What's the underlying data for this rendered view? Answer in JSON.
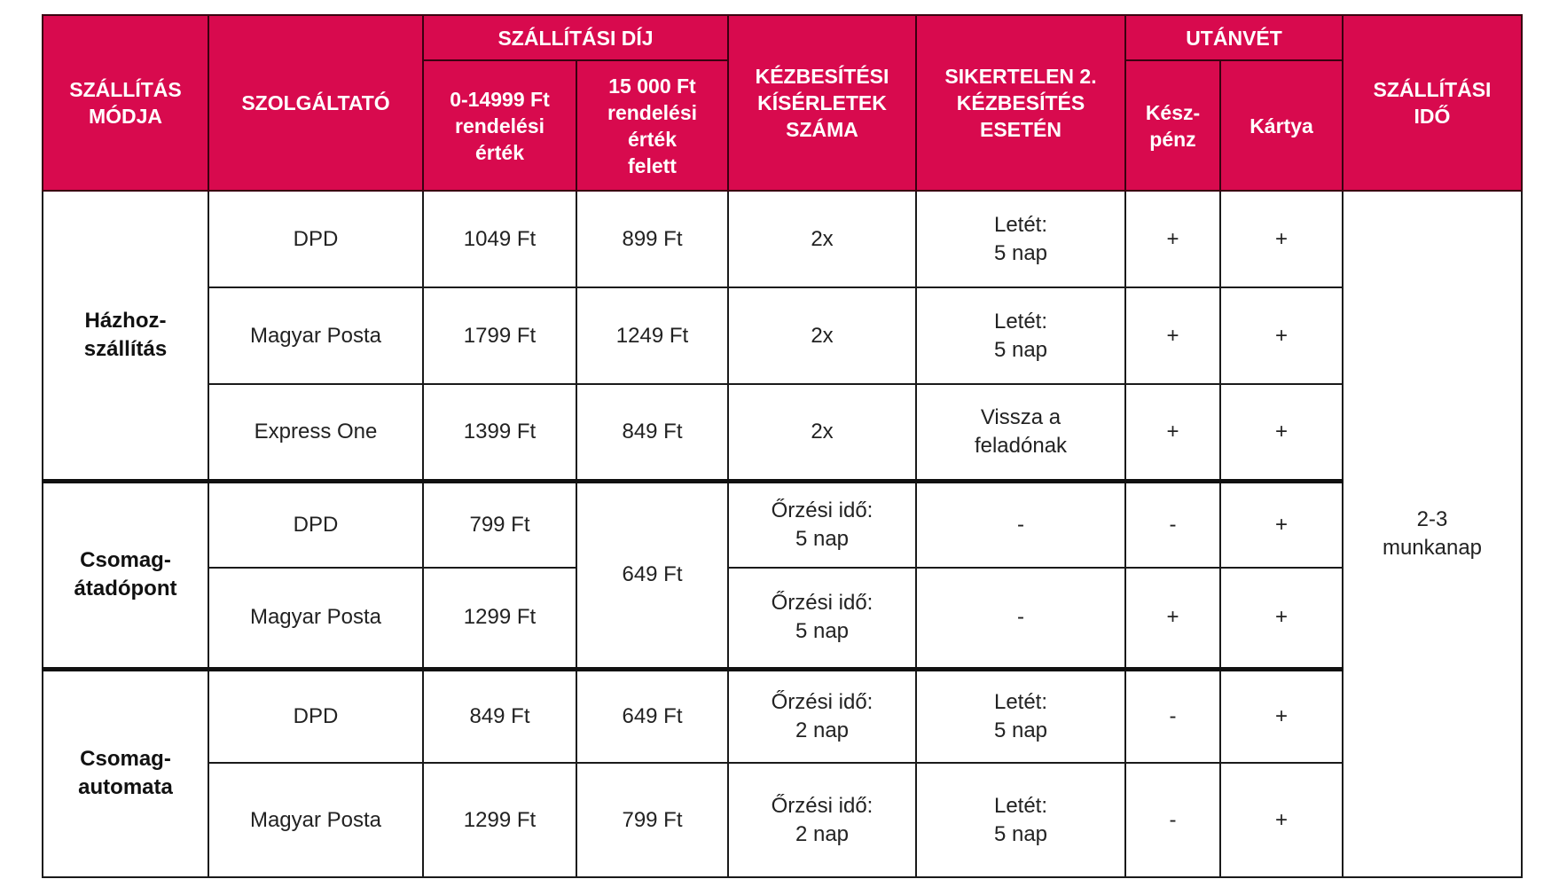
{
  "colors": {
    "header_bg": "#d80a4e",
    "header_text": "#ffffff"
  },
  "headers": {
    "mode": "SZÁLLÍTÁS\nMÓDJA",
    "provider": "SZOLGÁLTATÓ",
    "fee": "SZÁLLÍTÁSI DÍJ",
    "fee_low": "0-14999 Ft\nrendelési\nérték",
    "fee_high": "15 000 Ft\nrendelési\nérték\nfelett",
    "attempts": "KÉZBESÍTÉSI\nKÍSÉRLETEK\nSZÁMA",
    "failed": "SIKERTELEN 2.\nKÉZBESÍTÉS\nESETÉN",
    "cod": "UTÁNVÉT",
    "cash": "Kész-\npénz",
    "card": "Kártya",
    "time": "SZÁLLÍTÁSI\nIDŐ"
  },
  "groups": [
    {
      "mode": "Házhoz-\nszállítás",
      "rows": [
        {
          "provider": "DPD",
          "fee_low": "1049 Ft",
          "fee_high": "899 Ft",
          "attempts": "2x",
          "failed": "Letét:\n5 nap",
          "cash": "+",
          "card": "+"
        },
        {
          "provider": "Magyar Posta",
          "fee_low": "1799 Ft",
          "fee_high": "1249 Ft",
          "attempts": "2x",
          "failed": "Letét:\n5 nap",
          "cash": "+",
          "card": "+"
        },
        {
          "provider": "Express One",
          "fee_low": "1399 Ft",
          "fee_high": "849 Ft",
          "attempts": "2x",
          "failed": "Vissza a\nfeladónak",
          "cash": "+",
          "card": "+"
        }
      ]
    },
    {
      "mode": "Csomag-\nátadópont",
      "fee_high_shared": "649 Ft",
      "rows": [
        {
          "provider": "DPD",
          "fee_low": "799 Ft",
          "attempts": "Őrzési idő:\n5 nap",
          "failed": "-",
          "cash": "-",
          "card": "+"
        },
        {
          "provider": "Magyar Posta",
          "fee_low": "1299 Ft",
          "attempts": "Őrzési idő:\n5 nap",
          "failed": "-",
          "cash": "+",
          "card": "+"
        }
      ]
    },
    {
      "mode": "Csomag-\nautomata",
      "rows": [
        {
          "provider": "DPD",
          "fee_low": "849 Ft",
          "fee_high": "649 Ft",
          "attempts": "Őrzési idő:\n2 nap",
          "failed": "Letét:\n5 nap",
          "cash": "-",
          "card": "+"
        },
        {
          "provider": "Magyar Posta",
          "fee_low": "1299 Ft",
          "fee_high": "799 Ft",
          "attempts": "Őrzési idő:\n2 nap",
          "failed": "Letét:\n5 nap",
          "cash": "-",
          "card": "+"
        }
      ]
    }
  ],
  "delivery_time": "2-3\nmunkanap"
}
